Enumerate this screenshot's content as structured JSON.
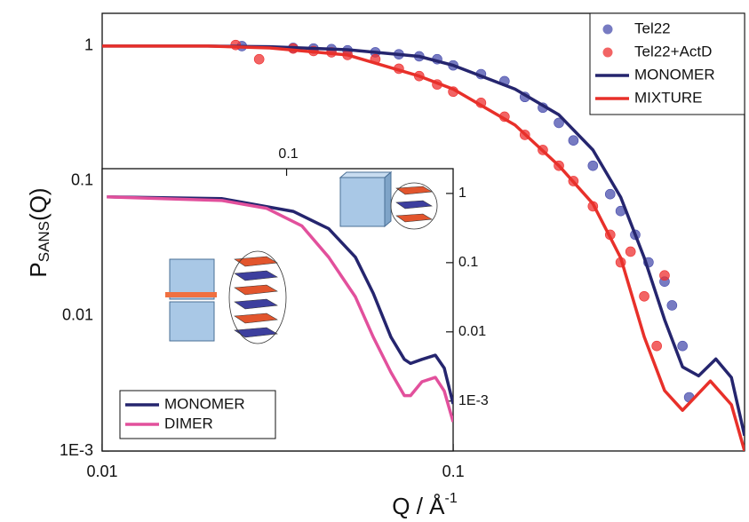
{
  "chart_data": [
    {
      "type": "line",
      "xlog": true,
      "ylog": true,
      "xlabel": "Q / Å",
      "xlabel_sup": "-1",
      "ylabel": "P",
      "ylabel_sub": "SANS",
      "ylabel_end": "(Q)",
      "xlim": [
        0.01,
        0.676
      ],
      "ylim": [
        0.001,
        1.75
      ],
      "xticks": [
        0.01,
        0.1
      ],
      "yticks": [
        1,
        0.1,
        0.01,
        {
          "value": 0.001,
          "label": "1E-3"
        }
      ],
      "legend": "top-right",
      "series": [
        {
          "name": "Tel22",
          "mode": "markers",
          "color": "#4a4fae",
          "x": [
            0.025,
            0.035,
            0.04,
            0.045,
            0.05,
            0.06,
            0.07,
            0.08,
            0.09,
            0.1,
            0.12,
            0.14,
            0.16,
            0.18,
            0.2,
            0.22,
            0.25,
            0.28,
            0.3,
            0.33,
            0.36,
            0.4,
            0.42,
            0.45,
            0.47
          ],
          "values": [
            1.0,
            0.97,
            0.96,
            0.95,
            0.93,
            0.9,
            0.87,
            0.84,
            0.8,
            0.72,
            0.62,
            0.55,
            0.42,
            0.35,
            0.27,
            0.2,
            0.13,
            0.08,
            0.06,
            0.04,
            0.025,
            0.018,
            0.012,
            0.006,
            0.0025
          ]
        },
        {
          "name": "Tel22+ActD",
          "mode": "markers",
          "color": "#ee3030",
          "x": [
            0.024,
            0.028,
            0.035,
            0.04,
            0.045,
            0.05,
            0.06,
            0.07,
            0.08,
            0.09,
            0.1,
            0.12,
            0.14,
            0.16,
            0.18,
            0.2,
            0.22,
            0.25,
            0.28,
            0.3,
            0.32,
            0.35,
            0.38,
            0.4
          ],
          "values": [
            1.02,
            0.8,
            0.96,
            0.92,
            0.9,
            0.86,
            0.8,
            0.68,
            0.6,
            0.52,
            0.46,
            0.38,
            0.3,
            0.22,
            0.17,
            0.13,
            0.1,
            0.065,
            0.04,
            0.025,
            0.03,
            0.014,
            0.006,
            0.02
          ]
        },
        {
          "name": "MONOMER",
          "mode": "line",
          "color": "#25256e",
          "x": [
            0.01,
            0.02,
            0.03,
            0.05,
            0.08,
            0.1,
            0.15,
            0.2,
            0.25,
            0.3,
            0.35,
            0.4,
            0.45,
            0.5,
            0.56,
            0.62,
            0.676
          ],
          "values": [
            1,
            1,
            0.99,
            0.94,
            0.84,
            0.72,
            0.48,
            0.31,
            0.17,
            0.076,
            0.027,
            0.0094,
            0.0042,
            0.0036,
            0.0048,
            0.0035,
            0.0013
          ]
        },
        {
          "name": "MIXTURE",
          "mode": "line",
          "color": "#e8302a",
          "x": [
            0.01,
            0.02,
            0.03,
            0.05,
            0.08,
            0.1,
            0.15,
            0.2,
            0.25,
            0.3,
            0.35,
            0.4,
            0.45,
            0.54,
            0.62,
            0.676
          ],
          "values": [
            1,
            1,
            0.97,
            0.86,
            0.6,
            0.48,
            0.26,
            0.13,
            0.068,
            0.027,
            0.007,
            0.0028,
            0.002,
            0.0033,
            0.0022,
            0.001
          ]
        }
      ]
    },
    {
      "type": "line",
      "xlog": true,
      "ylog": true,
      "xlim": [
        0.01,
        0.8
      ],
      "ylim": [
        0.00019,
        2.28
      ],
      "xticks": [
        0.1
      ],
      "yticks": [
        1,
        0.1,
        0.01,
        {
          "value": 0.001,
          "label": "1E-3"
        }
      ],
      "legend": "bottom-left",
      "series": [
        {
          "name": "MONOMER",
          "mode": "line",
          "color": "#25256e",
          "x": [
            0.0106,
            0.0447,
            0.1086,
            0.169,
            0.236,
            0.295,
            0.368,
            0.435,
            0.47,
            0.542,
            0.641,
            0.716,
            0.8
          ],
          "values": [
            0.89,
            0.84,
            0.55,
            0.31,
            0.12,
            0.036,
            0.0084,
            0.004,
            0.0035,
            0.004,
            0.0046,
            0.003,
            0.00091
          ]
        },
        {
          "name": "DIMER",
          "mode": "line",
          "color": "#e2509c",
          "x": [
            0.0106,
            0.0447,
            0.0778,
            0.121,
            0.169,
            0.236,
            0.295,
            0.368,
            0.435,
            0.47,
            0.542,
            0.641,
            0.716,
            0.8
          ],
          "values": [
            0.89,
            0.79,
            0.61,
            0.34,
            0.12,
            0.032,
            0.0084,
            0.0026,
            0.0012,
            0.0012,
            0.0019,
            0.0022,
            0.0014,
            0.0005
          ]
        }
      ]
    }
  ]
}
